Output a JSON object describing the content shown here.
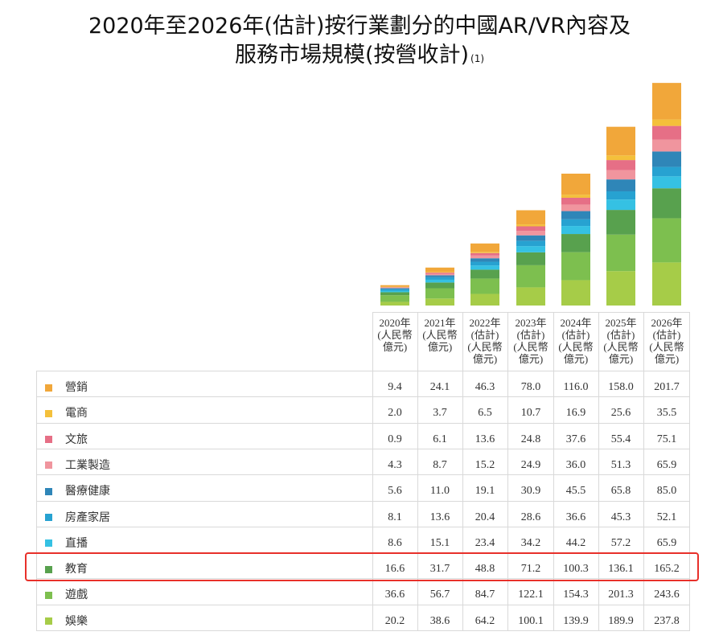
{
  "title": {
    "line1": "2020年至2026年(估計)按行業劃分的中國AR/VR內容及",
    "line2": "服務市場規模(按營收計)",
    "footnote": "(1)"
  },
  "chart_data": {
    "type": "bar",
    "stacked": true,
    "categories": [
      "2020年",
      "2021年",
      "2022年",
      "2023年",
      "2024年",
      "2025年",
      "2026年"
    ],
    "column_headers": [
      [
        "2020年",
        "(人民幣",
        "億元)"
      ],
      [
        "2021年",
        "(人民幣",
        "億元)"
      ],
      [
        "2022年",
        "(估計)",
        "(人民幣",
        "億元)"
      ],
      [
        "2023年",
        "(估計)",
        "(人民幣",
        "億元)"
      ],
      [
        "2024年",
        "(估計)",
        "(人民幣",
        "億元)"
      ],
      [
        "2025年",
        "(估計)",
        "(人民幣",
        "億元)"
      ],
      [
        "2026年",
        "(估計)",
        "(人民幣",
        "億元)"
      ]
    ],
    "unit": "人民幣億元",
    "series": [
      {
        "name": "營銷",
        "color": "#F1A73A",
        "values": [
          "9.4",
          "24.1",
          "46.3",
          "78.0",
          "116.0",
          "158.0",
          "201.7"
        ]
      },
      {
        "name": "電商",
        "color": "#F4C03B",
        "values": [
          "2.0",
          "3.7",
          "6.5",
          "10.7",
          "16.9",
          "25.6",
          "35.5"
        ]
      },
      {
        "name": "文旅",
        "color": "#E66F86",
        "values": [
          "0.9",
          "6.1",
          "13.6",
          "24.8",
          "37.6",
          "55.4",
          "75.1"
        ]
      },
      {
        "name": "工業製造",
        "color": "#F0959E",
        "values": [
          "4.3",
          "8.7",
          "15.2",
          "24.9",
          "36.0",
          "51.3",
          "65.9"
        ]
      },
      {
        "name": "醫療健康",
        "color": "#2F86B8",
        "values": [
          "5.6",
          "11.0",
          "19.1",
          "30.9",
          "45.5",
          "65.8",
          "85.0"
        ]
      },
      {
        "name": "房產家居",
        "color": "#27A2D1",
        "values": [
          "8.1",
          "13.6",
          "20.4",
          "28.6",
          "36.6",
          "45.3",
          "52.1"
        ]
      },
      {
        "name": "直播",
        "color": "#35C1E3",
        "values": [
          "8.6",
          "15.1",
          "23.4",
          "34.2",
          "44.2",
          "57.2",
          "65.9"
        ]
      },
      {
        "name": "教育",
        "color": "#58A14E",
        "values": [
          "16.6",
          "31.7",
          "48.8",
          "71.2",
          "100.3",
          "136.1",
          "165.2"
        ]
      },
      {
        "name": "遊戲",
        "color": "#7DBF4F",
        "values": [
          "36.6",
          "56.7",
          "84.7",
          "122.1",
          "154.3",
          "201.3",
          "243.6"
        ]
      },
      {
        "name": "娛樂",
        "color": "#A6CC48",
        "values": [
          "20.2",
          "38.6",
          "64.2",
          "100.1",
          "139.9",
          "189.9",
          "237.8"
        ]
      }
    ],
    "highlighted_series": "教育",
    "legend": "left-table"
  }
}
